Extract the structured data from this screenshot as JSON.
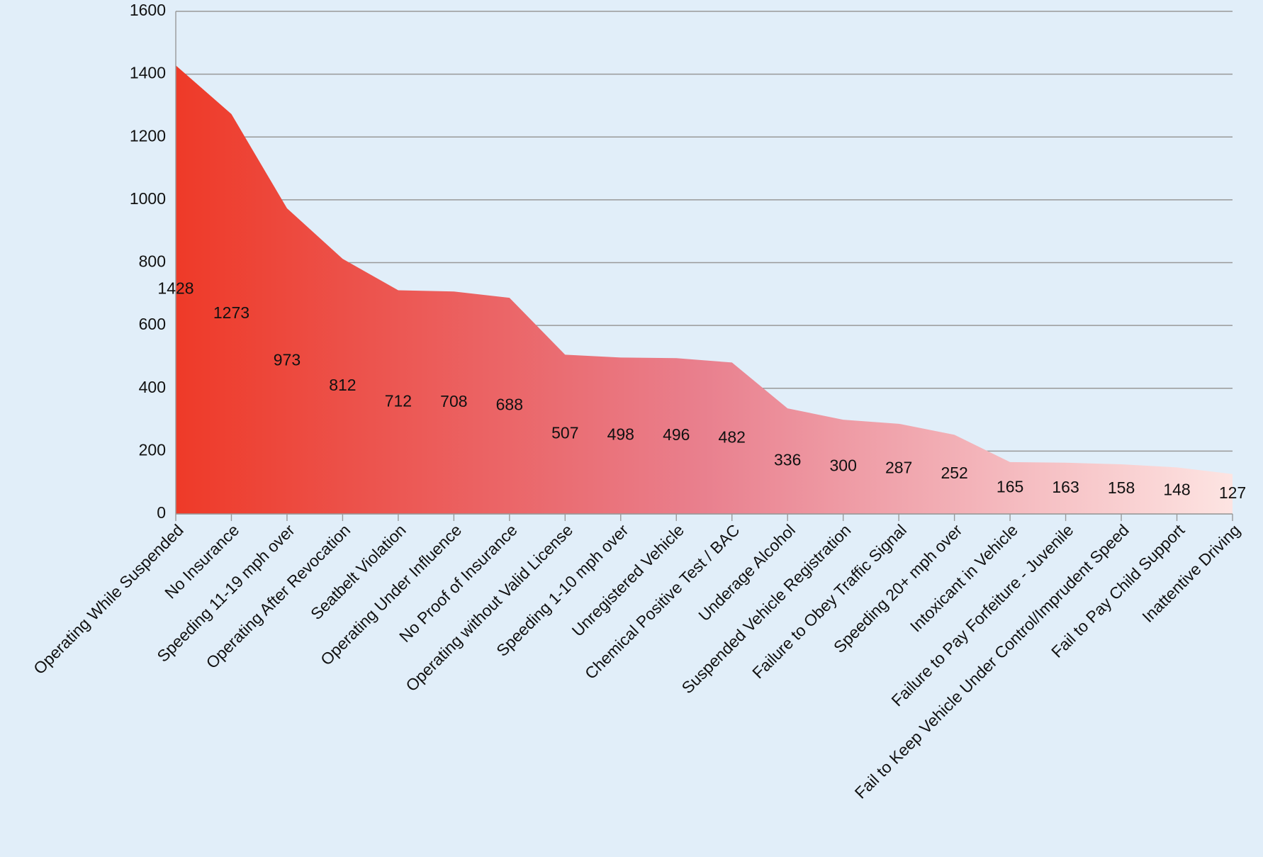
{
  "chart_data": {
    "type": "area",
    "categories": [
      "Operating While Suspended",
      "No Insurance",
      "Speeding 11-19 mph over",
      "Operating After Revocation",
      "Seatbelt Violation",
      "Operating Under Influence",
      "No Proof of Insurance",
      "Operating without Valid License",
      "Speeding 1-10 mph over",
      "Unregistered Vehicle",
      "Chemical Positive Test / BAC",
      "Underage Alcohol",
      "Suspended Vehicle Registration",
      "Failure to Obey Traffic Signal",
      "Speeding 20+ mph over",
      "Intoxicant in Vehicle",
      "Failure to Pay Forfeiture - Juvenile",
      "Fail to Keep Vehicle Under Control/Imprudent Speed",
      "Fail to Pay Child Support",
      "Inattentive Driving"
    ],
    "values": [
      1428,
      1273,
      973,
      812,
      712,
      708,
      688,
      507,
      498,
      496,
      482,
      336,
      300,
      287,
      252,
      165,
      163,
      158,
      148,
      127
    ],
    "color_stops": [
      "#ee3a28",
      "#e9808e",
      "#fde4e2"
    ],
    "ylim": [
      0,
      1600
    ],
    "yticks": [
      0,
      200,
      400,
      600,
      800,
      1000,
      1200,
      1400,
      1600
    ],
    "grid": true
  }
}
